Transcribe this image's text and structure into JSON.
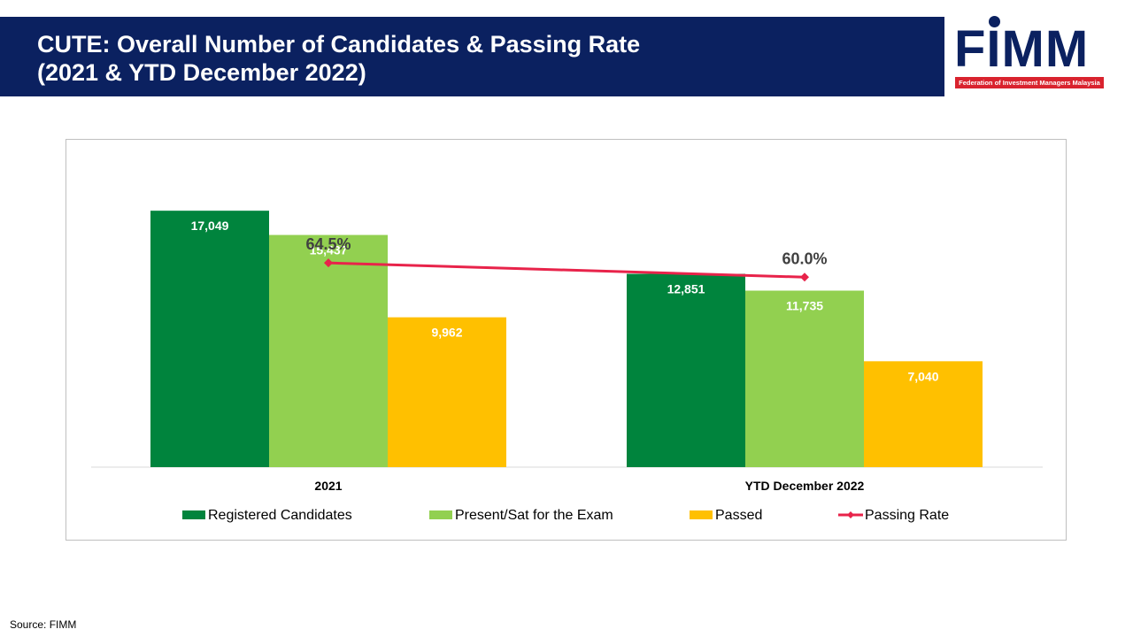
{
  "header": {
    "title_line1": "CUTE: Overall Number of Candidates & Passing Rate",
    "title_line2": "(2021 & YTD December 2022)"
  },
  "logo": {
    "wordmark": "FIMM",
    "tagline": "Federation of Investment Managers Malaysia"
  },
  "chart_data": {
    "type": "bar",
    "categories": [
      "2021",
      "YTD December 2022"
    ],
    "series": [
      {
        "name": "Registered Candidates",
        "values": [
          17049,
          12851
        ],
        "labels": [
          "17,049",
          "12,851"
        ],
        "color": "#00843d"
      },
      {
        "name": "Present/Sat for the Exam",
        "values": [
          15437,
          11735
        ],
        "labels": [
          "15,437",
          "11,735"
        ],
        "color": "#92d050"
      },
      {
        "name": "Passed",
        "values": [
          9962,
          7040
        ],
        "labels": [
          "9,962",
          "7,040"
        ],
        "color": "#ffc000"
      }
    ],
    "line_series": {
      "name": "Passing Rate",
      "type": "line",
      "values": [
        64.5,
        60.0
      ],
      "labels": [
        "64.5%",
        "60.0%"
      ],
      "color": "#e8234a"
    },
    "ylim": [
      0,
      20000
    ],
    "line_ylim": [
      0,
      95
    ],
    "grid": false,
    "legend_position": "bottom"
  },
  "source": "Source: FIMM"
}
